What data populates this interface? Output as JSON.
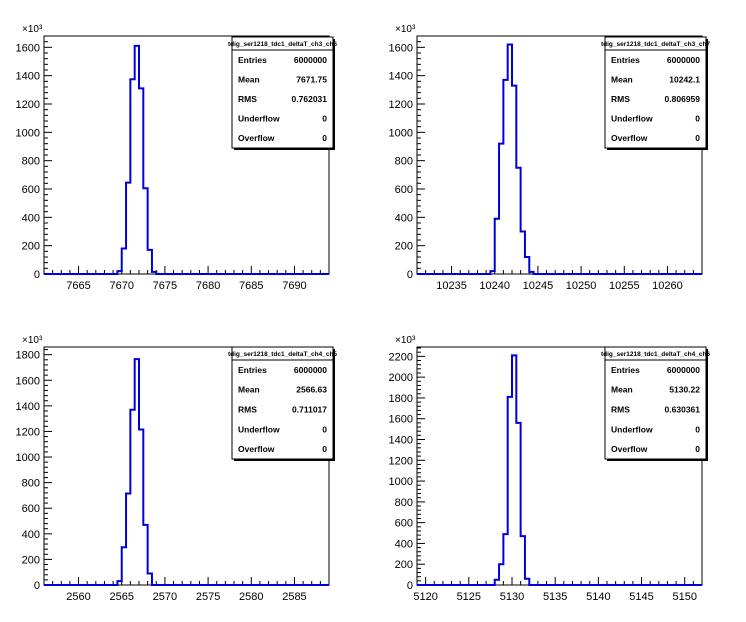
{
  "chart_data": [
    {
      "type": "histogram",
      "y_exponent_label": "×10³",
      "xlim": [
        7661,
        7694
      ],
      "ylim": [
        0,
        1680
      ],
      "x_ticks": [
        7665,
        7670,
        7675,
        7680,
        7685,
        7690
      ],
      "y_ticks": [
        0,
        200,
        400,
        600,
        800,
        1000,
        1200,
        1400,
        1600
      ],
      "y_ticks_thousands": true,
      "bin_edges": [
        7669.5,
        7670.0,
        7670.5,
        7671.0,
        7671.5,
        7672.0,
        7672.5,
        7673.0,
        7673.5,
        7674.0
      ],
      "counts": [
        20,
        180,
        645,
        1375,
        1610,
        1310,
        605,
        170,
        15
      ],
      "stats": {
        "title": "tdig_ser1218_tdc1_deltaT_ch3_ch6",
        "rows": [
          {
            "key": "Entries",
            "value": "6000000"
          },
          {
            "key": "Mean",
            "value": "7671.75"
          },
          {
            "key": "RMS",
            "value": "0.762031"
          },
          {
            "key": "Underflow",
            "value": "0"
          },
          {
            "key": "Overflow",
            "value": "0"
          }
        ]
      }
    },
    {
      "type": "histogram",
      "y_exponent_label": "×10³",
      "xlim": [
        10231,
        10264
      ],
      "ylim": [
        0,
        1680
      ],
      "x_ticks": [
        10235,
        10240,
        10245,
        10250,
        10255,
        10260
      ],
      "y_ticks": [
        0,
        200,
        400,
        600,
        800,
        1000,
        1200,
        1400,
        1600
      ],
      "y_ticks_thousands": true,
      "bin_edges": [
        10239.5,
        10240.0,
        10240.5,
        10241.0,
        10241.5,
        10242.0,
        10242.5,
        10243.0,
        10243.5,
        10244.0,
        10244.5
      ],
      "counts": [
        20,
        390,
        920,
        1370,
        1620,
        1330,
        750,
        300,
        120,
        15
      ],
      "stats": {
        "title": "tdig_ser1218_tdc1_deltaT_ch3_ch7",
        "rows": [
          {
            "key": "Entries",
            "value": "6000000"
          },
          {
            "key": "Mean",
            "value": "10242.1"
          },
          {
            "key": "RMS",
            "value": "0.806959"
          },
          {
            "key": "Underflow",
            "value": "0"
          },
          {
            "key": "Overflow",
            "value": "0"
          }
        ]
      }
    },
    {
      "type": "histogram",
      "y_exponent_label": "×10³",
      "xlim": [
        2556,
        2589
      ],
      "ylim": [
        0,
        1860
      ],
      "x_ticks": [
        2560,
        2565,
        2570,
        2575,
        2580,
        2585
      ],
      "y_ticks": [
        0,
        200,
        400,
        600,
        800,
        1000,
        1200,
        1400,
        1600,
        1800
      ],
      "y_ticks_thousands": true,
      "bin_edges": [
        2564.5,
        2565.0,
        2565.5,
        2566.0,
        2566.5,
        2567.0,
        2567.5,
        2568.0,
        2568.5
      ],
      "counts": [
        30,
        295,
        715,
        1370,
        1765,
        1215,
        470,
        90
      ],
      "stats": {
        "title": "tdig_ser1218_tdc1_deltaT_ch4_ch5",
        "rows": [
          {
            "key": "Entries",
            "value": "6000000"
          },
          {
            "key": "Mean",
            "value": "2566.63"
          },
          {
            "key": "RMS",
            "value": "0.711017"
          },
          {
            "key": "Underflow",
            "value": "0"
          },
          {
            "key": "Overflow",
            "value": "0"
          }
        ]
      }
    },
    {
      "type": "histogram",
      "y_exponent_label": "×10³",
      "xlim": [
        5119,
        5152
      ],
      "ylim": [
        0,
        2290
      ],
      "x_ticks": [
        5120,
        5125,
        5130,
        5135,
        5140,
        5145,
        5150
      ],
      "y_ticks": [
        0,
        200,
        400,
        600,
        800,
        1000,
        1200,
        1400,
        1600,
        1800,
        2000,
        2200
      ],
      "y_ticks_thousands": true,
      "bin_edges": [
        5128.0,
        5128.5,
        5129.0,
        5129.5,
        5130.0,
        5130.5,
        5131.0,
        5131.5,
        5132.0
      ],
      "counts": [
        50,
        200,
        490,
        1810,
        2210,
        1560,
        470,
        60
      ],
      "stats": {
        "title": "tdig_ser1218_tdc1_deltaT_ch4_ch6",
        "rows": [
          {
            "key": "Entries",
            "value": "6000000"
          },
          {
            "key": "Mean",
            "value": "5130.22"
          },
          {
            "key": "RMS",
            "value": "0.630361"
          },
          {
            "key": "Underflow",
            "value": "0"
          },
          {
            "key": "Overflow",
            "value": "0"
          }
        ]
      }
    }
  ]
}
